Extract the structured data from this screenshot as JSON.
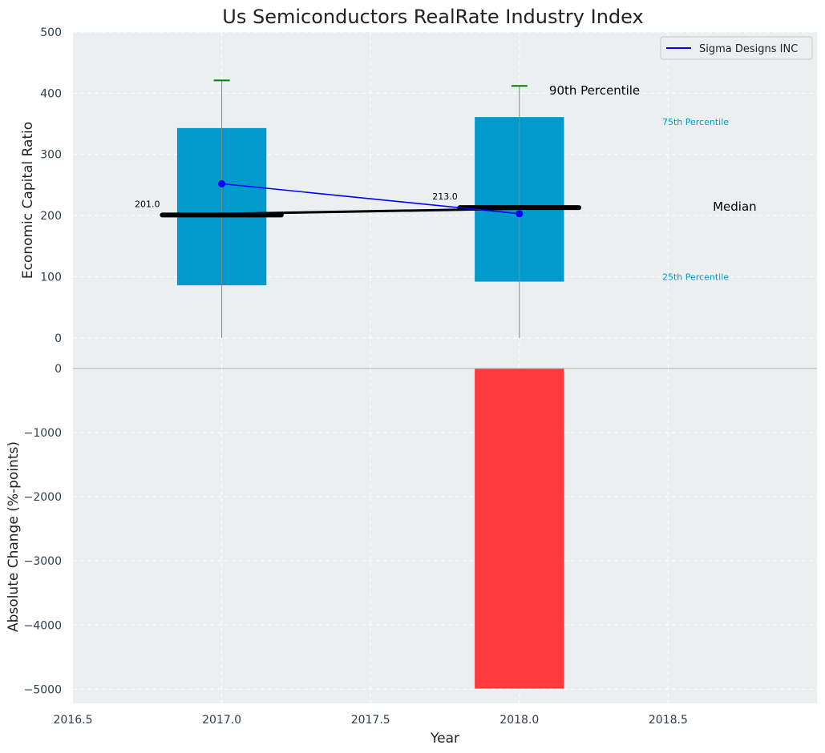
{
  "chart_data": {
    "type": "bar",
    "title": "Us Semiconductors RealRate Industry Index",
    "xlabel": "Year",
    "x_ticks": [
      "2016.5",
      "2017.0",
      "2017.5",
      "2018.0",
      "2018.5"
    ],
    "xlim": [
      2016.5,
      2019.0
    ],
    "grid": true,
    "legend_position": "top-right",
    "colors": {
      "box": "#009ACD",
      "negative_bar": "#FF3B3F",
      "company_line": "#0000FF",
      "median": "#000000",
      "percentile90": "#008000",
      "background": "#EBEFF0"
    },
    "top_panel": {
      "ylabel": "Economic Capital Ratio",
      "ylim": [
        -50,
        500
      ],
      "y_ticks": [
        "500",
        "400",
        "300",
        "200",
        "100",
        "0"
      ],
      "boxes": [
        {
          "x": 2017.0,
          "p25": 86,
          "p75": 343,
          "median": 201,
          "p90": 421,
          "median_label": "201.0"
        },
        {
          "x": 2018.0,
          "p25": 92,
          "p75": 361,
          "median": 213,
          "p90": 412,
          "median_label": "213.0"
        }
      ],
      "series": [
        {
          "name": "Sigma Designs INC",
          "x": [
            2017.0,
            2018.0
          ],
          "values": [
            252,
            203
          ]
        }
      ],
      "annotations": {
        "p90": "90th Percentile",
        "p75": "75th Percentile",
        "median": "Median",
        "p25": "25th Percentile"
      }
    },
    "bottom_panel": {
      "ylabel": "Absolute Change (%-points)",
      "ylim": [
        -5220,
        0
      ],
      "y_ticks": [
        "0",
        "−1000",
        "−2000",
        "−3000",
        "−4000",
        "−5000"
      ],
      "bars": [
        {
          "x": 2018.0,
          "value": -4990
        }
      ]
    }
  }
}
